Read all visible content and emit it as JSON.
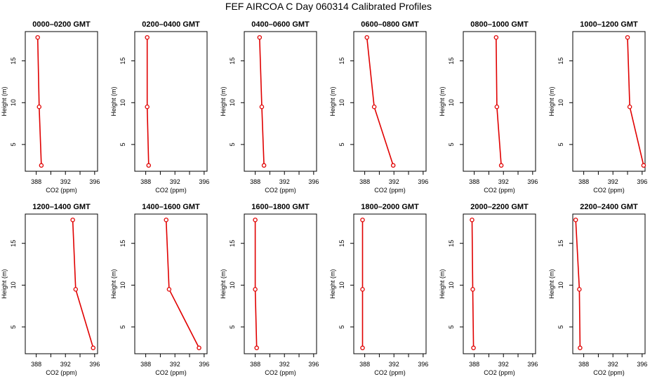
{
  "title": "FEF AIRCOA C  Day 060314  Calibrated Profiles",
  "colors": {
    "series": "#e00000",
    "axis": "#000000",
    "background": "#ffffff"
  },
  "chart_data": [
    {
      "type": "line",
      "title": "0000–0200 GMT",
      "xlabel": "CO2 (ppm)",
      "ylabel": "Height (m)",
      "xlim": [
        386.5,
        396.4
      ],
      "ylim": [
        1.8,
        18.5
      ],
      "xticks": [
        "388",
        "392",
        "396"
      ],
      "yticks": [
        "5",
        "10",
        "15"
      ],
      "x": [
        388.2,
        388.4,
        388.7
      ],
      "y": [
        17.8,
        9.5,
        2.5
      ]
    },
    {
      "type": "line",
      "title": "0200–0400 GMT",
      "xlabel": "CO2 (ppm)",
      "ylabel": "Height (m)",
      "xlim": [
        386.5,
        396.4
      ],
      "ylim": [
        1.8,
        18.5
      ],
      "xticks": [
        "388",
        "392",
        "396"
      ],
      "yticks": [
        "5",
        "10",
        "15"
      ],
      "x": [
        388.2,
        388.2,
        388.4
      ],
      "y": [
        17.8,
        9.5,
        2.5
      ]
    },
    {
      "type": "line",
      "title": "0400–0600 GMT",
      "xlabel": "CO2 (ppm)",
      "ylabel": "Height (m)",
      "xlim": [
        386.5,
        396.4
      ],
      "ylim": [
        1.8,
        18.5
      ],
      "xticks": [
        "388",
        "392",
        "396"
      ],
      "yticks": [
        "5",
        "10",
        "15"
      ],
      "x": [
        388.6,
        388.9,
        389.2
      ],
      "y": [
        17.8,
        9.5,
        2.5
      ]
    },
    {
      "type": "line",
      "title": "0600–0800 GMT",
      "xlabel": "CO2 (ppm)",
      "ylabel": "Height (m)",
      "xlim": [
        386.5,
        396.4
      ],
      "ylim": [
        1.8,
        18.5
      ],
      "xticks": [
        "388",
        "392",
        "396"
      ],
      "yticks": [
        "5",
        "10",
        "15"
      ],
      "x": [
        388.3,
        389.3,
        391.9
      ],
      "y": [
        17.8,
        9.5,
        2.5
      ]
    },
    {
      "type": "line",
      "title": "0800–1000 GMT",
      "xlabel": "CO2 (ppm)",
      "ylabel": "Height (m)",
      "xlim": [
        386.5,
        396.4
      ],
      "ylim": [
        1.8,
        18.5
      ],
      "xticks": [
        "388",
        "392",
        "396"
      ],
      "yticks": [
        "5",
        "10",
        "15"
      ],
      "x": [
        391.0,
        391.1,
        391.7
      ],
      "y": [
        17.8,
        9.5,
        2.5
      ]
    },
    {
      "type": "line",
      "title": "1000–1200 GMT",
      "xlabel": "CO2 (ppm)",
      "ylabel": "Height (m)",
      "xlim": [
        386.5,
        396.4
      ],
      "ylim": [
        1.8,
        18.5
      ],
      "xticks": [
        "388",
        "392",
        "396"
      ],
      "yticks": [
        "5",
        "10",
        "15"
      ],
      "x": [
        394.0,
        394.3,
        396.2
      ],
      "y": [
        17.8,
        9.5,
        2.5
      ]
    },
    {
      "type": "line",
      "title": "1200–1400 GMT",
      "xlabel": "CO2 (ppm)",
      "ylabel": "Height (m)",
      "xlim": [
        386.5,
        396.4
      ],
      "ylim": [
        1.8,
        18.5
      ],
      "xticks": [
        "388",
        "392",
        "396"
      ],
      "yticks": [
        "5",
        "10",
        "15"
      ],
      "x": [
        393.0,
        393.4,
        395.8
      ],
      "y": [
        17.8,
        9.5,
        2.5
      ]
    },
    {
      "type": "line",
      "title": "1400–1600 GMT",
      "xlabel": "CO2 (ppm)",
      "ylabel": "Height (m)",
      "xlim": [
        386.5,
        396.4
      ],
      "ylim": [
        1.8,
        18.5
      ],
      "xticks": [
        "388",
        "392",
        "396"
      ],
      "yticks": [
        "5",
        "10",
        "15"
      ],
      "x": [
        390.8,
        391.2,
        395.3
      ],
      "y": [
        17.8,
        9.5,
        2.5
      ]
    },
    {
      "type": "line",
      "title": "1600–1800 GMT",
      "xlabel": "CO2 (ppm)",
      "ylabel": "Height (m)",
      "xlim": [
        386.5,
        396.4
      ],
      "ylim": [
        1.8,
        18.5
      ],
      "xticks": [
        "388",
        "392",
        "396"
      ],
      "yticks": [
        "5",
        "10",
        "15"
      ],
      "x": [
        388.0,
        388.0,
        388.2
      ],
      "y": [
        17.8,
        9.5,
        2.5
      ]
    },
    {
      "type": "line",
      "title": "1800–2000 GMT",
      "xlabel": "CO2 (ppm)",
      "ylabel": "Height (m)",
      "xlim": [
        386.5,
        396.4
      ],
      "ylim": [
        1.8,
        18.5
      ],
      "xticks": [
        "388",
        "392",
        "396"
      ],
      "yticks": [
        "5",
        "10",
        "15"
      ],
      "x": [
        387.7,
        387.7,
        387.7
      ],
      "y": [
        17.8,
        9.5,
        2.5
      ]
    },
    {
      "type": "line",
      "title": "2000–2200 GMT",
      "xlabel": "CO2 (ppm)",
      "ylabel": "Height (m)",
      "xlim": [
        386.5,
        396.4
      ],
      "ylim": [
        1.8,
        18.5
      ],
      "xticks": [
        "388",
        "392",
        "396"
      ],
      "yticks": [
        "5",
        "10",
        "15"
      ],
      "x": [
        387.7,
        387.8,
        387.9
      ],
      "y": [
        17.8,
        9.5,
        2.5
      ]
    },
    {
      "type": "line",
      "title": "2200–2400 GMT",
      "xlabel": "CO2 (ppm)",
      "ylabel": "Height (m)",
      "xlim": [
        386.5,
        396.4
      ],
      "ylim": [
        1.8,
        18.5
      ],
      "xticks": [
        "388",
        "392",
        "396"
      ],
      "yticks": [
        "5",
        "10",
        "15"
      ],
      "x": [
        386.9,
        387.4,
        387.5
      ],
      "y": [
        17.8,
        9.5,
        2.5
      ]
    }
  ]
}
